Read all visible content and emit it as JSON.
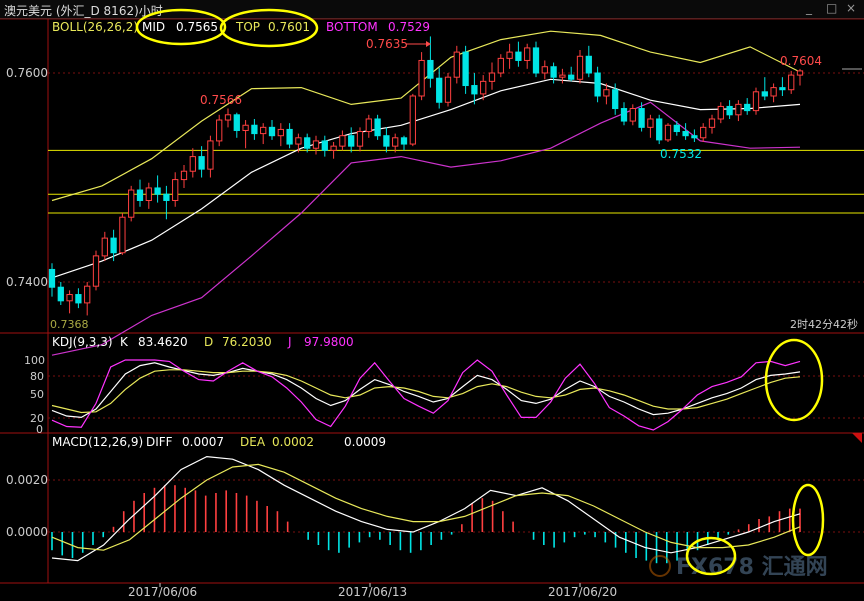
{
  "window": {
    "title": "澳元美元 (外汇_D 8162)小时",
    "controls": [
      "_",
      "□",
      "×"
    ]
  },
  "colors": {
    "up": "#ff4040",
    "down": "#00e5e5",
    "bb_mid": "#ffffff",
    "bb_top": "#e8e85a",
    "bb_bot": "#cc33cc",
    "hline": "#e8e800",
    "grid": "#7a1010",
    "highlight": "#ffff00",
    "label_red": "#ff4a4a",
    "label_cyan": "#00e5e5",
    "label_magenta": "#ff33ff",
    "axis_text": "#cccccc"
  },
  "price_panel": {
    "indicator": "BOLL(26,26,2)",
    "mid_label": "MID",
    "mid_value": "0.7565",
    "top_label": "TOP",
    "top_value": "0.7601",
    "bottom_label": "BOTTOM",
    "bottom_value": "0.7529",
    "y_ticks": [
      "0.7600",
      "0.7400"
    ],
    "annotations": [
      "0.7566",
      "0.7635",
      "0.7604",
      "0.7532",
      "0.7368"
    ],
    "time_remaining": "2时42分42秒"
  },
  "kdj_panel": {
    "indicator": "KDJ(9,3,3)",
    "k_label": "K",
    "k_value": "83.4620",
    "d_label": "D",
    "d_value": "76.2030",
    "j_label": "J",
    "j_value": "97.9800",
    "y_ticks": [
      "100",
      "80",
      "50",
      "20",
      "0"
    ]
  },
  "macd_panel": {
    "indicator": "MACD(12,26,9)",
    "diff_label": "DIFF",
    "diff_value": "0.0007",
    "dea_label": "DEA",
    "dea_value": "0.0002",
    "macd_value": "0.0009",
    "y_ticks": [
      "0.0020",
      "0.0000"
    ]
  },
  "x_axis": {
    "dates": [
      "2017/06/06",
      "2017/06/13",
      "2017/06/20"
    ]
  },
  "watermark": {
    "text": "FX678 汇通网"
  },
  "chart_data": [
    {
      "type": "candlestick",
      "title": "BOLL(26,26,2)",
      "ylim": [
        0.7368,
        0.765
      ],
      "y_ticks": [
        0.76,
        0.74
      ],
      "x_tick_labels": [
        "2017/06/06",
        "2017/06/13",
        "2017/06/20"
      ],
      "ohlc": [
        [
          0.7412,
          0.7418,
          0.7386,
          0.7395
        ],
        [
          0.7395,
          0.74,
          0.7378,
          0.7382
        ],
        [
          0.7382,
          0.7392,
          0.737,
          0.7388
        ],
        [
          0.7388,
          0.7394,
          0.7375,
          0.738
        ],
        [
          0.738,
          0.74,
          0.7368,
          0.7396
        ],
        [
          0.7396,
          0.743,
          0.7392,
          0.7425
        ],
        [
          0.7425,
          0.7448,
          0.742,
          0.7442
        ],
        [
          0.7442,
          0.745,
          0.742,
          0.7428
        ],
        [
          0.7428,
          0.7466,
          0.7426,
          0.7462
        ],
        [
          0.7462,
          0.7492,
          0.7458,
          0.7488
        ],
        [
          0.7488,
          0.7498,
          0.7472,
          0.7478
        ],
        [
          0.7478,
          0.7495,
          0.747,
          0.749
        ],
        [
          0.749,
          0.7502,
          0.7476,
          0.7484
        ],
        [
          0.7484,
          0.7492,
          0.746,
          0.7478
        ],
        [
          0.7478,
          0.7505,
          0.7472,
          0.7498
        ],
        [
          0.7498,
          0.7512,
          0.749,
          0.7506
        ],
        [
          0.7506,
          0.7528,
          0.75,
          0.752
        ],
        [
          0.752,
          0.753,
          0.75,
          0.7508
        ],
        [
          0.7508,
          0.754,
          0.75,
          0.7535
        ],
        [
          0.7535,
          0.756,
          0.753,
          0.7555
        ],
        [
          0.7555,
          0.7566,
          0.7548,
          0.756
        ],
        [
          0.756,
          0.7562,
          0.7538,
          0.7545
        ],
        [
          0.7545,
          0.7555,
          0.7528,
          0.755
        ],
        [
          0.755,
          0.7556,
          0.7536,
          0.7542
        ],
        [
          0.7542,
          0.7552,
          0.7532,
          0.7548
        ],
        [
          0.7548,
          0.7555,
          0.7536,
          0.754
        ],
        [
          0.754,
          0.7552,
          0.753,
          0.7546
        ],
        [
          0.7546,
          0.7552,
          0.7528,
          0.7532
        ],
        [
          0.7532,
          0.7542,
          0.7524,
          0.7538
        ],
        [
          0.7538,
          0.7542,
          0.7524,
          0.7528
        ],
        [
          0.7528,
          0.754,
          0.7522,
          0.7535
        ],
        [
          0.7535,
          0.754,
          0.752,
          0.7526
        ],
        [
          0.7526,
          0.7534,
          0.7518,
          0.753
        ],
        [
          0.753,
          0.7545,
          0.7526,
          0.754
        ],
        [
          0.754,
          0.7548,
          0.7524,
          0.753
        ],
        [
          0.753,
          0.7548,
          0.7525,
          0.7544
        ],
        [
          0.7544,
          0.756,
          0.7538,
          0.7556
        ],
        [
          0.7556,
          0.756,
          0.7536,
          0.754
        ],
        [
          0.754,
          0.7548,
          0.7524,
          0.753
        ],
        [
          0.753,
          0.7542,
          0.7524,
          0.7538
        ],
        [
          0.7538,
          0.754,
          0.7526,
          0.7532
        ],
        [
          0.7532,
          0.758,
          0.753,
          0.7578
        ],
        [
          0.7578,
          0.762,
          0.7574,
          0.7612
        ],
        [
          0.7612,
          0.7635,
          0.7586,
          0.7595
        ],
        [
          0.7595,
          0.7605,
          0.7566,
          0.7572
        ],
        [
          0.7572,
          0.76,
          0.7568,
          0.7596
        ],
        [
          0.7596,
          0.7626,
          0.759,
          0.762
        ],
        [
          0.762,
          0.7626,
          0.758,
          0.7588
        ],
        [
          0.7588,
          0.76,
          0.757,
          0.758
        ],
        [
          0.758,
          0.7598,
          0.7574,
          0.7592
        ],
        [
          0.7592,
          0.761,
          0.7584,
          0.76
        ],
        [
          0.76,
          0.7618,
          0.7596,
          0.7614
        ],
        [
          0.7614,
          0.7628,
          0.7604,
          0.762
        ],
        [
          0.762,
          0.763,
          0.7606,
          0.7612
        ],
        [
          0.7612,
          0.7628,
          0.7604,
          0.7624
        ],
        [
          0.7624,
          0.763,
          0.7596,
          0.76
        ],
        [
          0.76,
          0.7612,
          0.7594,
          0.7606
        ],
        [
          0.7606,
          0.761,
          0.759,
          0.7596
        ],
        [
          0.7596,
          0.7604,
          0.759,
          0.7598
        ],
        [
          0.7598,
          0.7606,
          0.7592,
          0.7594
        ],
        [
          0.7594,
          0.7622,
          0.759,
          0.7616
        ],
        [
          0.7616,
          0.7626,
          0.7596,
          0.76
        ],
        [
          0.76,
          0.7606,
          0.7572,
          0.7578
        ],
        [
          0.7578,
          0.759,
          0.757,
          0.7584
        ],
        [
          0.7584,
          0.759,
          0.756,
          0.7566
        ],
        [
          0.7566,
          0.7572,
          0.755,
          0.7554
        ],
        [
          0.7554,
          0.757,
          0.755,
          0.7566
        ],
        [
          0.7566,
          0.7572,
          0.7544,
          0.7548
        ],
        [
          0.7548,
          0.756,
          0.7538,
          0.7556
        ],
        [
          0.7556,
          0.756,
          0.7532,
          0.7536
        ],
        [
          0.7536,
          0.7552,
          0.7534,
          0.755
        ],
        [
          0.755,
          0.7554,
          0.754,
          0.7544
        ],
        [
          0.7544,
          0.7552,
          0.7536,
          0.754
        ],
        [
          0.754,
          0.7546,
          0.7534,
          0.7538
        ],
        [
          0.7538,
          0.7552,
          0.7534,
          0.7548
        ],
        [
          0.7548,
          0.756,
          0.7542,
          0.7556
        ],
        [
          0.7556,
          0.7572,
          0.7552,
          0.7568
        ],
        [
          0.7568,
          0.7574,
          0.7556,
          0.756
        ],
        [
          0.756,
          0.7574,
          0.7554,
          0.757
        ],
        [
          0.757,
          0.7576,
          0.756,
          0.7564
        ],
        [
          0.7564,
          0.7586,
          0.756,
          0.7582
        ],
        [
          0.7582,
          0.7596,
          0.7574,
          0.7578
        ],
        [
          0.7578,
          0.759,
          0.7572,
          0.7586
        ],
        [
          0.7586,
          0.7596,
          0.7578,
          0.7584
        ],
        [
          0.7584,
          0.7602,
          0.758,
          0.7598
        ],
        [
          0.7598,
          0.7604,
          0.7588,
          0.7602
        ]
      ],
      "bollinger_middle_anchors": [
        0.7404,
        0.742,
        0.744,
        0.747,
        0.7505,
        0.7528,
        0.7542,
        0.755,
        0.7565,
        0.7583,
        0.7594,
        0.759,
        0.7574,
        0.7565,
        0.7566,
        0.757
      ],
      "bollinger_top_anchors": [
        0.7478,
        0.7492,
        0.7518,
        0.7554,
        0.7585,
        0.7586,
        0.757,
        0.7576,
        0.7615,
        0.7632,
        0.764,
        0.7636,
        0.762,
        0.761,
        0.7625,
        0.7601
      ],
      "bollinger_bottom_anchors": [
        0.733,
        0.734,
        0.7368,
        0.7385,
        0.7425,
        0.7466,
        0.7514,
        0.752,
        0.751,
        0.7516,
        0.7528,
        0.7552,
        0.7572,
        0.7535,
        0.7528,
        0.7529
      ],
      "horizontal_levels": [
        0.7526,
        0.7484,
        0.7466
      ]
    },
    {
      "type": "line",
      "title": "KDJ(9,3,3)",
      "ylim": [
        0,
        100
      ],
      "y_ticks": [
        100,
        80,
        50,
        20,
        0
      ],
      "series": [
        {
          "name": "K",
          "values": [
            28,
            20,
            18,
            30,
            55,
            80,
            92,
            96,
            90,
            85,
            80,
            78,
            82,
            88,
            84,
            80,
            72,
            60,
            45,
            35,
            42,
            58,
            72,
            65,
            55,
            48,
            40,
            45,
            62,
            78,
            72,
            58,
            42,
            38,
            44,
            58,
            70,
            62,
            48,
            40,
            30,
            22,
            24,
            30,
            38,
            46,
            52,
            60,
            72,
            78,
            80,
            83
          ]
        },
        {
          "name": "D",
          "values": [
            35,
            30,
            25,
            26,
            38,
            58,
            74,
            84,
            86,
            86,
            84,
            82,
            82,
            84,
            84,
            82,
            78,
            70,
            60,
            50,
            46,
            50,
            60,
            62,
            60,
            55,
            48,
            46,
            52,
            62,
            66,
            62,
            54,
            48,
            46,
            50,
            58,
            60,
            56,
            50,
            42,
            34,
            30,
            30,
            32,
            38,
            44,
            52,
            60,
            68,
            74,
            76
          ]
        },
        {
          "name": "J",
          "values": [
            14,
            5,
            4,
            38,
            90,
            100,
            100,
            100,
            98,
            84,
            72,
            70,
            84,
            96,
            84,
            76,
            60,
            40,
            15,
            5,
            34,
            74,
            96,
            70,
            45,
            34,
            24,
            42,
            82,
            100,
            84,
            50,
            18,
            18,
            40,
            74,
            94,
            66,
            32,
            20,
            6,
            0,
            12,
            30,
            50,
            62,
            68,
            76,
            96,
            98,
            92,
            98
          ]
        }
      ]
    },
    {
      "type": "bar",
      "title": "MACD(12,26,9)",
      "ylim": [
        -0.0013,
        0.003
      ],
      "y_ticks": [
        0.002,
        0.0
      ],
      "histogram": [
        -0.0007,
        -0.0009,
        -0.001,
        -0.0008,
        -0.0005,
        -0.0002,
        0.0002,
        0.0008,
        0.0012,
        0.0015,
        0.0017,
        0.0018,
        0.0018,
        0.0017,
        0.0016,
        0.0014,
        0.0015,
        0.0016,
        0.0015,
        0.0014,
        0.0012,
        0.001,
        0.0008,
        0.0004,
        0.0,
        -0.0003,
        -0.0005,
        -0.0007,
        -0.0008,
        -0.0006,
        -0.0004,
        -0.0002,
        -0.0003,
        -0.0005,
        -0.0007,
        -0.0008,
        -0.0007,
        -0.0005,
        -0.0003,
        -0.0001,
        0.0003,
        0.0011,
        0.0013,
        0.0012,
        0.0008,
        0.0004,
        0.0,
        -0.0003,
        -0.0005,
        -0.0006,
        -0.0004,
        -0.0002,
        -0.0001,
        -0.0002,
        -0.0004,
        -0.0006,
        -0.0008,
        -0.001,
        -0.0011,
        -0.0012,
        -0.0012,
        -0.0011,
        -0.0009,
        -0.0007,
        -0.0005,
        -0.0003,
        -0.0001,
        0.0001,
        0.0003,
        0.0005,
        0.0006,
        0.0008,
        0.0009,
        0.0009
      ],
      "series": [
        {
          "name": "DIFF",
          "values": [
            -0.001,
            -0.0011,
            -0.0005,
            0.0005,
            0.0014,
            0.0024,
            0.0029,
            0.0028,
            0.0024,
            0.0018,
            0.0013,
            0.0008,
            0.0004,
            0.0001,
            0.0,
            0.0004,
            0.0009,
            0.0016,
            0.0014,
            0.0017,
            0.0012,
            0.0005,
            -0.0002,
            -0.0006,
            -0.0008,
            -0.0006,
            -0.0003,
            0.0,
            0.0004,
            0.0007
          ]
        },
        {
          "name": "DEA",
          "values": [
            -0.0002,
            -0.0006,
            -0.0007,
            -0.0003,
            0.0005,
            0.0013,
            0.002,
            0.0025,
            0.0026,
            0.0023,
            0.0018,
            0.0013,
            0.0009,
            0.0006,
            0.0004,
            0.0004,
            0.0006,
            0.001,
            0.0014,
            0.0015,
            0.0014,
            0.001,
            0.0005,
            0.0,
            -0.0004,
            -0.0006,
            -0.0006,
            -0.0005,
            -0.0002,
            0.0002
          ]
        }
      ]
    }
  ]
}
